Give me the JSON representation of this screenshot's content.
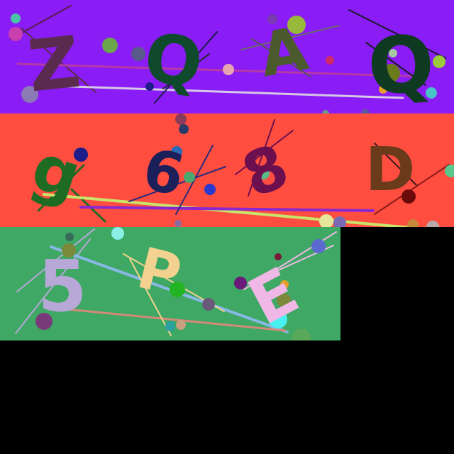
{
  "rows": [
    {
      "background": "#8a1cf5",
      "glyphs": [
        {
          "text": "Z",
          "color": "#5b2a4f"
        },
        {
          "text": "Q",
          "color": "#0f4a2c"
        },
        {
          "text": "A",
          "color": "#4a5a2c"
        },
        {
          "text": "Q",
          "color": "#0f3a22"
        }
      ]
    },
    {
      "background": "#ff4d40",
      "glyphs": [
        {
          "text": "g",
          "color": "#1e6b23"
        },
        {
          "text": "6",
          "color": "#1b1f5a"
        },
        {
          "text": "8",
          "color": "#6b0f4f"
        },
        {
          "text": "D",
          "color": "#6b3a1b"
        }
      ]
    },
    {
      "background": "#3ea864",
      "glyphs": [
        {
          "text": "5",
          "color": "#b7a8d8"
        },
        {
          "text": "P",
          "color": "#f3d28f"
        },
        {
          "text": "E",
          "color": "#f0b8e6"
        }
      ]
    }
  ]
}
